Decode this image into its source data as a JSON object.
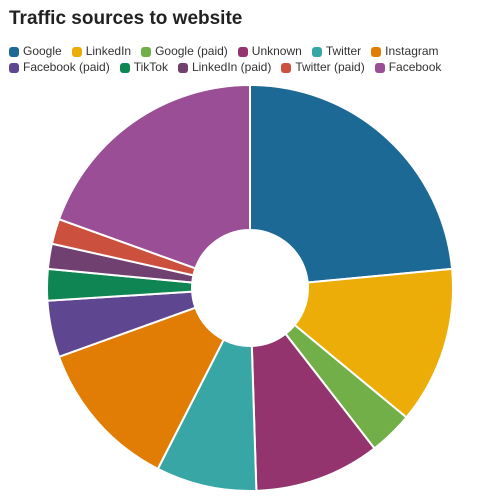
{
  "chart_data": {
    "type": "pie",
    "title": "Traffic sources to website",
    "subtitle": "",
    "donut": true,
    "slices": [
      {
        "label": "Google",
        "value": 23.5,
        "color": "#1d6996"
      },
      {
        "label": "LinkedIn",
        "value": 12.5,
        "color": "#edad08"
      },
      {
        "label": "Google (paid)",
        "value": 3.5,
        "color": "#73af48"
      },
      {
        "label": "Unknown",
        "value": 10,
        "color": "#94346e"
      },
      {
        "label": "Twitter",
        "value": 8,
        "color": "#38a6a5"
      },
      {
        "label": "Instagram",
        "value": 12,
        "color": "#e17c05"
      },
      {
        "label": "Facebook (paid)",
        "value": 4.5,
        "color": "#5f4690"
      },
      {
        "label": "TikTok",
        "value": 2.5,
        "color": "#0f8554"
      },
      {
        "label": "LinkedIn (paid)",
        "value": 2,
        "color": "#6f4070"
      },
      {
        "label": "Twitter (paid)",
        "value": 2,
        "color": "#cc503e"
      },
      {
        "label": "Facebook",
        "value": 19.5,
        "color": "#994e95"
      }
    ],
    "legend_placement": "top-left"
  }
}
